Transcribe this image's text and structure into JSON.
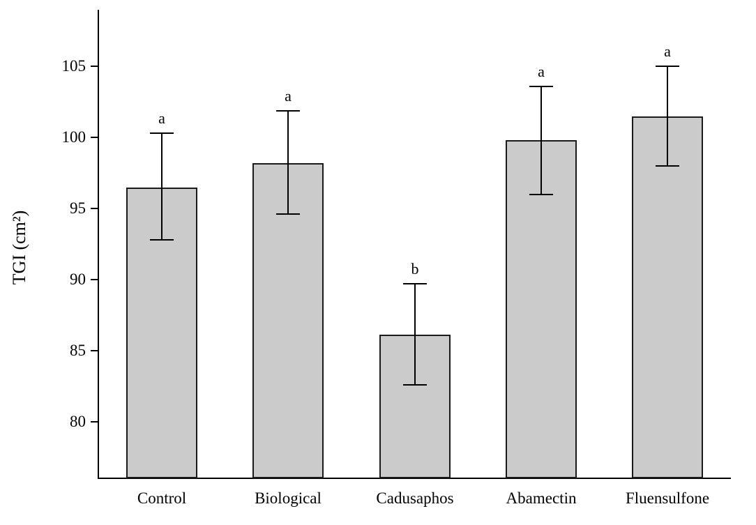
{
  "chart_data": {
    "type": "bar",
    "title": "",
    "xlabel": "",
    "ylabel": "TGI (cm²)",
    "ylim": [
      76,
      109
    ],
    "yticks": [
      80,
      85,
      90,
      95,
      100,
      105
    ],
    "categories": [
      "Control",
      "Biological",
      "Cadusaphos",
      "Abamectin",
      "Fluensulfone"
    ],
    "values": [
      96.5,
      98.2,
      86.1,
      99.8,
      101.5
    ],
    "error_low": [
      92.8,
      94.6,
      82.6,
      96.0,
      98.0
    ],
    "error_high": [
      100.3,
      101.9,
      89.7,
      103.6,
      105.0
    ],
    "significance_letters": [
      "a",
      "a",
      "b",
      "a",
      "a"
    ],
    "bar_color": "#cbcbcb",
    "bar_border_color": "#1a1a1a",
    "axis_color": "#000000",
    "grid": false,
    "legend": false
  }
}
